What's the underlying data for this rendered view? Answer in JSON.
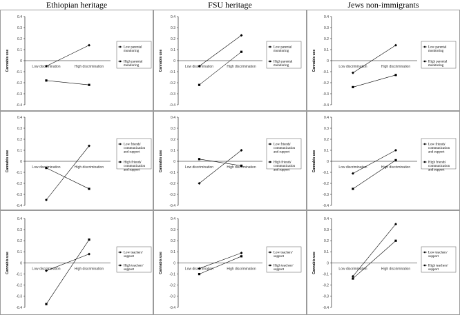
{
  "headers": [
    "Ethiopian heritage",
    "FSU heritage",
    "Jews non-immigrants"
  ],
  "chart_data": [
    {
      "type": "line",
      "group": "Ethiopian heritage",
      "ylabel": "Cannabis use",
      "categories": [
        "Low discrimination",
        "High discrimination"
      ],
      "ylim": [
        -0.4,
        0.4
      ],
      "yticks": [
        "0.4",
        "0.3",
        "0.2",
        "0.1",
        "0",
        "-0.1",
        "-0.2",
        "-0.3",
        "-0.4"
      ],
      "series": [
        {
          "name": "Low parental monitoring",
          "marker": "diamond",
          "values": [
            -0.05,
            0.14
          ]
        },
        {
          "name": "High parental monitoring",
          "marker": "square",
          "values": [
            -0.18,
            -0.22
          ]
        }
      ]
    },
    {
      "type": "line",
      "group": "FSU heritage",
      "ylabel": "Cannabis use",
      "categories": [
        "Low discrimination",
        "High discrimination"
      ],
      "ylim": [
        -0.4,
        0.4
      ],
      "yticks": [
        "0.4",
        "0.3",
        "0.2",
        "0.1",
        "0",
        "-0.1",
        "-0.2",
        "-0.3",
        "-0.4"
      ],
      "series": [
        {
          "name": "Low parental monitoring",
          "marker": "diamond",
          "values": [
            -0.05,
            0.23
          ]
        },
        {
          "name": "High parental monitoring",
          "marker": "square",
          "values": [
            -0.22,
            0.08
          ]
        }
      ]
    },
    {
      "type": "line",
      "group": "Jews non-immigrants",
      "ylabel": "Cannabis use",
      "categories": [
        "Low discrimination",
        "High discrimination"
      ],
      "ylim": [
        -0.4,
        0.4
      ],
      "yticks": [
        "0.4",
        "0.3",
        "0.2",
        "0.1",
        "0",
        "-0.1",
        "-0.2",
        "-0.3",
        "-0.4"
      ],
      "series": [
        {
          "name": "Low parental monitoring",
          "marker": "diamond",
          "values": [
            -0.11,
            0.14
          ]
        },
        {
          "name": "High parental monitoring",
          "marker": "square",
          "values": [
            -0.24,
            -0.13
          ]
        }
      ]
    },
    {
      "type": "line",
      "group": "Ethiopian heritage",
      "ylabel": "Cannabis use",
      "categories": [
        "Low discrimination",
        "High discrimination"
      ],
      "ylim": [
        -0.4,
        0.4
      ],
      "yticks": [
        "0.4",
        "0.3",
        "0.2",
        "0.1",
        "0",
        "-0.1",
        "-0.2",
        "-0.3",
        "-0.4"
      ],
      "series": [
        {
          "name": "Low friends' communication and support",
          "marker": "diamond",
          "values": [
            -0.35,
            0.14
          ]
        },
        {
          "name": "High friends' communication and support",
          "marker": "square",
          "values": [
            -0.06,
            -0.25
          ]
        }
      ]
    },
    {
      "type": "line",
      "group": "FSU heritage",
      "ylabel": "Cannabis use",
      "categories": [
        "Low discrimination",
        "High discrimination"
      ],
      "ylim": [
        -0.4,
        0.4
      ],
      "yticks": [
        "0.4",
        "0.3",
        "0.2",
        "0.1",
        "0",
        "-0.1",
        "-0.2",
        "-0.3",
        "-0.4"
      ],
      "series": [
        {
          "name": "Low friends' communication and support",
          "marker": "diamond",
          "values": [
            -0.2,
            0.1
          ]
        },
        {
          "name": "High friends' communication and support",
          "marker": "square",
          "values": [
            0.02,
            -0.04
          ]
        }
      ]
    },
    {
      "type": "line",
      "group": "Jews non-immigrants",
      "ylabel": "Cannabis use",
      "categories": [
        "Low discrimination",
        "High discrimination"
      ],
      "ylim": [
        -0.4,
        0.4
      ],
      "yticks": [
        "0.4",
        "0.3",
        "0.2",
        "0.1",
        "0",
        "-0.1",
        "-0.2",
        "-0.3",
        "-0.4"
      ],
      "series": [
        {
          "name": "Low friends' communication and support",
          "marker": "diamond",
          "values": [
            -0.11,
            0.1
          ]
        },
        {
          "name": "High friends' communication and support",
          "marker": "square",
          "values": [
            -0.25,
            0.01
          ]
        }
      ]
    },
    {
      "type": "line",
      "group": "Ethiopian heritage",
      "ylabel": "Cannabis use",
      "categories": [
        "Low discrimination",
        "High discrimination"
      ],
      "ylim": [
        -0.4,
        0.4
      ],
      "yticks": [
        "0.4",
        "0.3",
        "0.2",
        "0.1",
        "0",
        "-0.1",
        "-0.2",
        "-0.3",
        "-0.4"
      ],
      "series": [
        {
          "name": "Low teachers' support",
          "marker": "diamond",
          "values": [
            -0.07,
            0.08
          ]
        },
        {
          "name": "High teachers' support",
          "marker": "square",
          "values": [
            -0.37,
            0.21
          ]
        }
      ]
    },
    {
      "type": "line",
      "group": "FSU heritage",
      "ylabel": "Cannabis use",
      "categories": [
        "Low discrimination",
        "High discrimination"
      ],
      "ylim": [
        -0.4,
        0.4
      ],
      "yticks": [
        "0.4",
        "0.3",
        "0.2",
        "0.1",
        "0",
        "-0.1",
        "-0.2",
        "-0.3",
        "-0.4"
      ],
      "series": [
        {
          "name": "Low teachers' support",
          "marker": "diamond",
          "values": [
            -0.05,
            0.09
          ]
        },
        {
          "name": "High teachers' support",
          "marker": "square",
          "values": [
            -0.1,
            0.06
          ]
        }
      ]
    },
    {
      "type": "line",
      "group": "Jews non-immigrants",
      "ylabel": "Cannabis use",
      "categories": [
        "Low discrimination",
        "High discrimination"
      ],
      "ylim": [
        -0.4,
        0.4
      ],
      "yticks": [
        "0.4",
        "0.3",
        "0.2",
        "0.1",
        "0",
        "-0.1",
        "-0.2",
        "-0.3",
        "-0.4"
      ],
      "series": [
        {
          "name": "Low teachers' support",
          "marker": "diamond",
          "values": [
            -0.12,
            0.35
          ]
        },
        {
          "name": "High teachers' support",
          "marker": "square",
          "values": [
            -0.14,
            0.2
          ]
        }
      ]
    }
  ]
}
